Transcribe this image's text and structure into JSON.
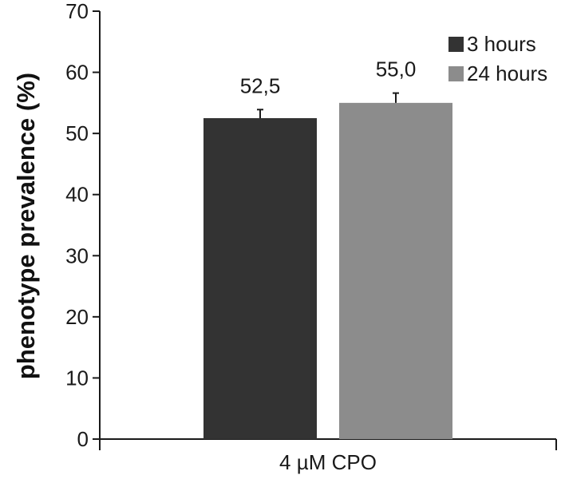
{
  "chart_data": {
    "type": "bar",
    "title": "",
    "xlabel": "",
    "ylabel": "phenotype prevalence (%)",
    "ylim": [
      0,
      70
    ],
    "yticks": [
      0,
      10,
      20,
      30,
      40,
      50,
      60,
      70
    ],
    "categories": [
      "4 µM CPO"
    ],
    "series": [
      {
        "name": "3 hours",
        "values": [
          52.5
        ],
        "error": [
          1.4
        ],
        "data_labels": [
          "52,5"
        ],
        "color": "#333333"
      },
      {
        "name": "24 hours",
        "values": [
          55.0
        ],
        "error": [
          1.6
        ],
        "data_labels": [
          "55,0"
        ],
        "color": "#8c8c8c"
      }
    ],
    "grid": false,
    "legend_position": "top-right"
  }
}
